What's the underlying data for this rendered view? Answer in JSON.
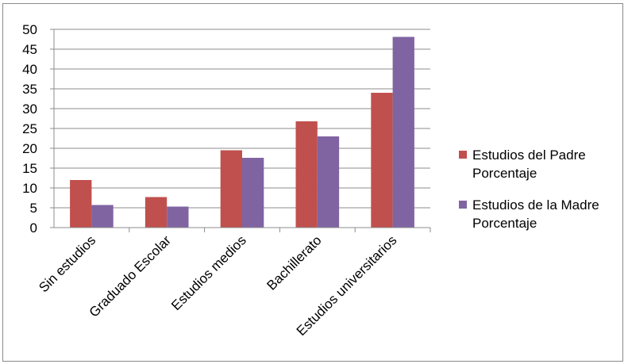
{
  "chart_data": {
    "type": "bar",
    "categories": [
      "Sin estudios",
      "Graduado Escolar",
      "Estudios medios",
      "Bachillerato",
      "Estudios universitarios"
    ],
    "series": [
      {
        "name_lines": [
          "Estudios del Padre",
          "Porcentaje"
        ],
        "color": "#c0504d",
        "values": [
          12,
          7.7,
          19.5,
          26.8,
          34
        ]
      },
      {
        "name_lines": [
          "Estudios de la Madre",
          "Porcentaje"
        ],
        "color": "#8064a2",
        "values": [
          5.7,
          5.3,
          17.6,
          23,
          48.1
        ]
      }
    ],
    "ylim": [
      0,
      50
    ],
    "yticks": [
      0,
      5,
      10,
      15,
      20,
      25,
      30,
      35,
      40,
      45,
      50
    ],
    "grid": true,
    "legend_position": "right"
  }
}
